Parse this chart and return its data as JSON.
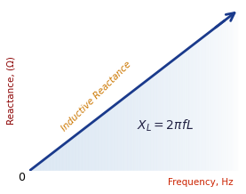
{
  "title": "",
  "xlabel": "Frequency, Hz",
  "ylabel": "Reactance, (Ω)",
  "xlabel_color": "#cc2200",
  "ylabel_color": "#8b0000",
  "line_color": "#1a3a8c",
  "arrow_color": "#1a3a8c",
  "fill_color": "#b8d0e8",
  "label_text": "Inductive Reactance",
  "label_color": "#cc7700",
  "formula_text": "$X_L = 2\\pi fL$",
  "formula_color": "#222244",
  "background_color": "#ffffff",
  "zero_label": "0",
  "xlim": [
    0,
    1
  ],
  "ylim": [
    0,
    1
  ]
}
